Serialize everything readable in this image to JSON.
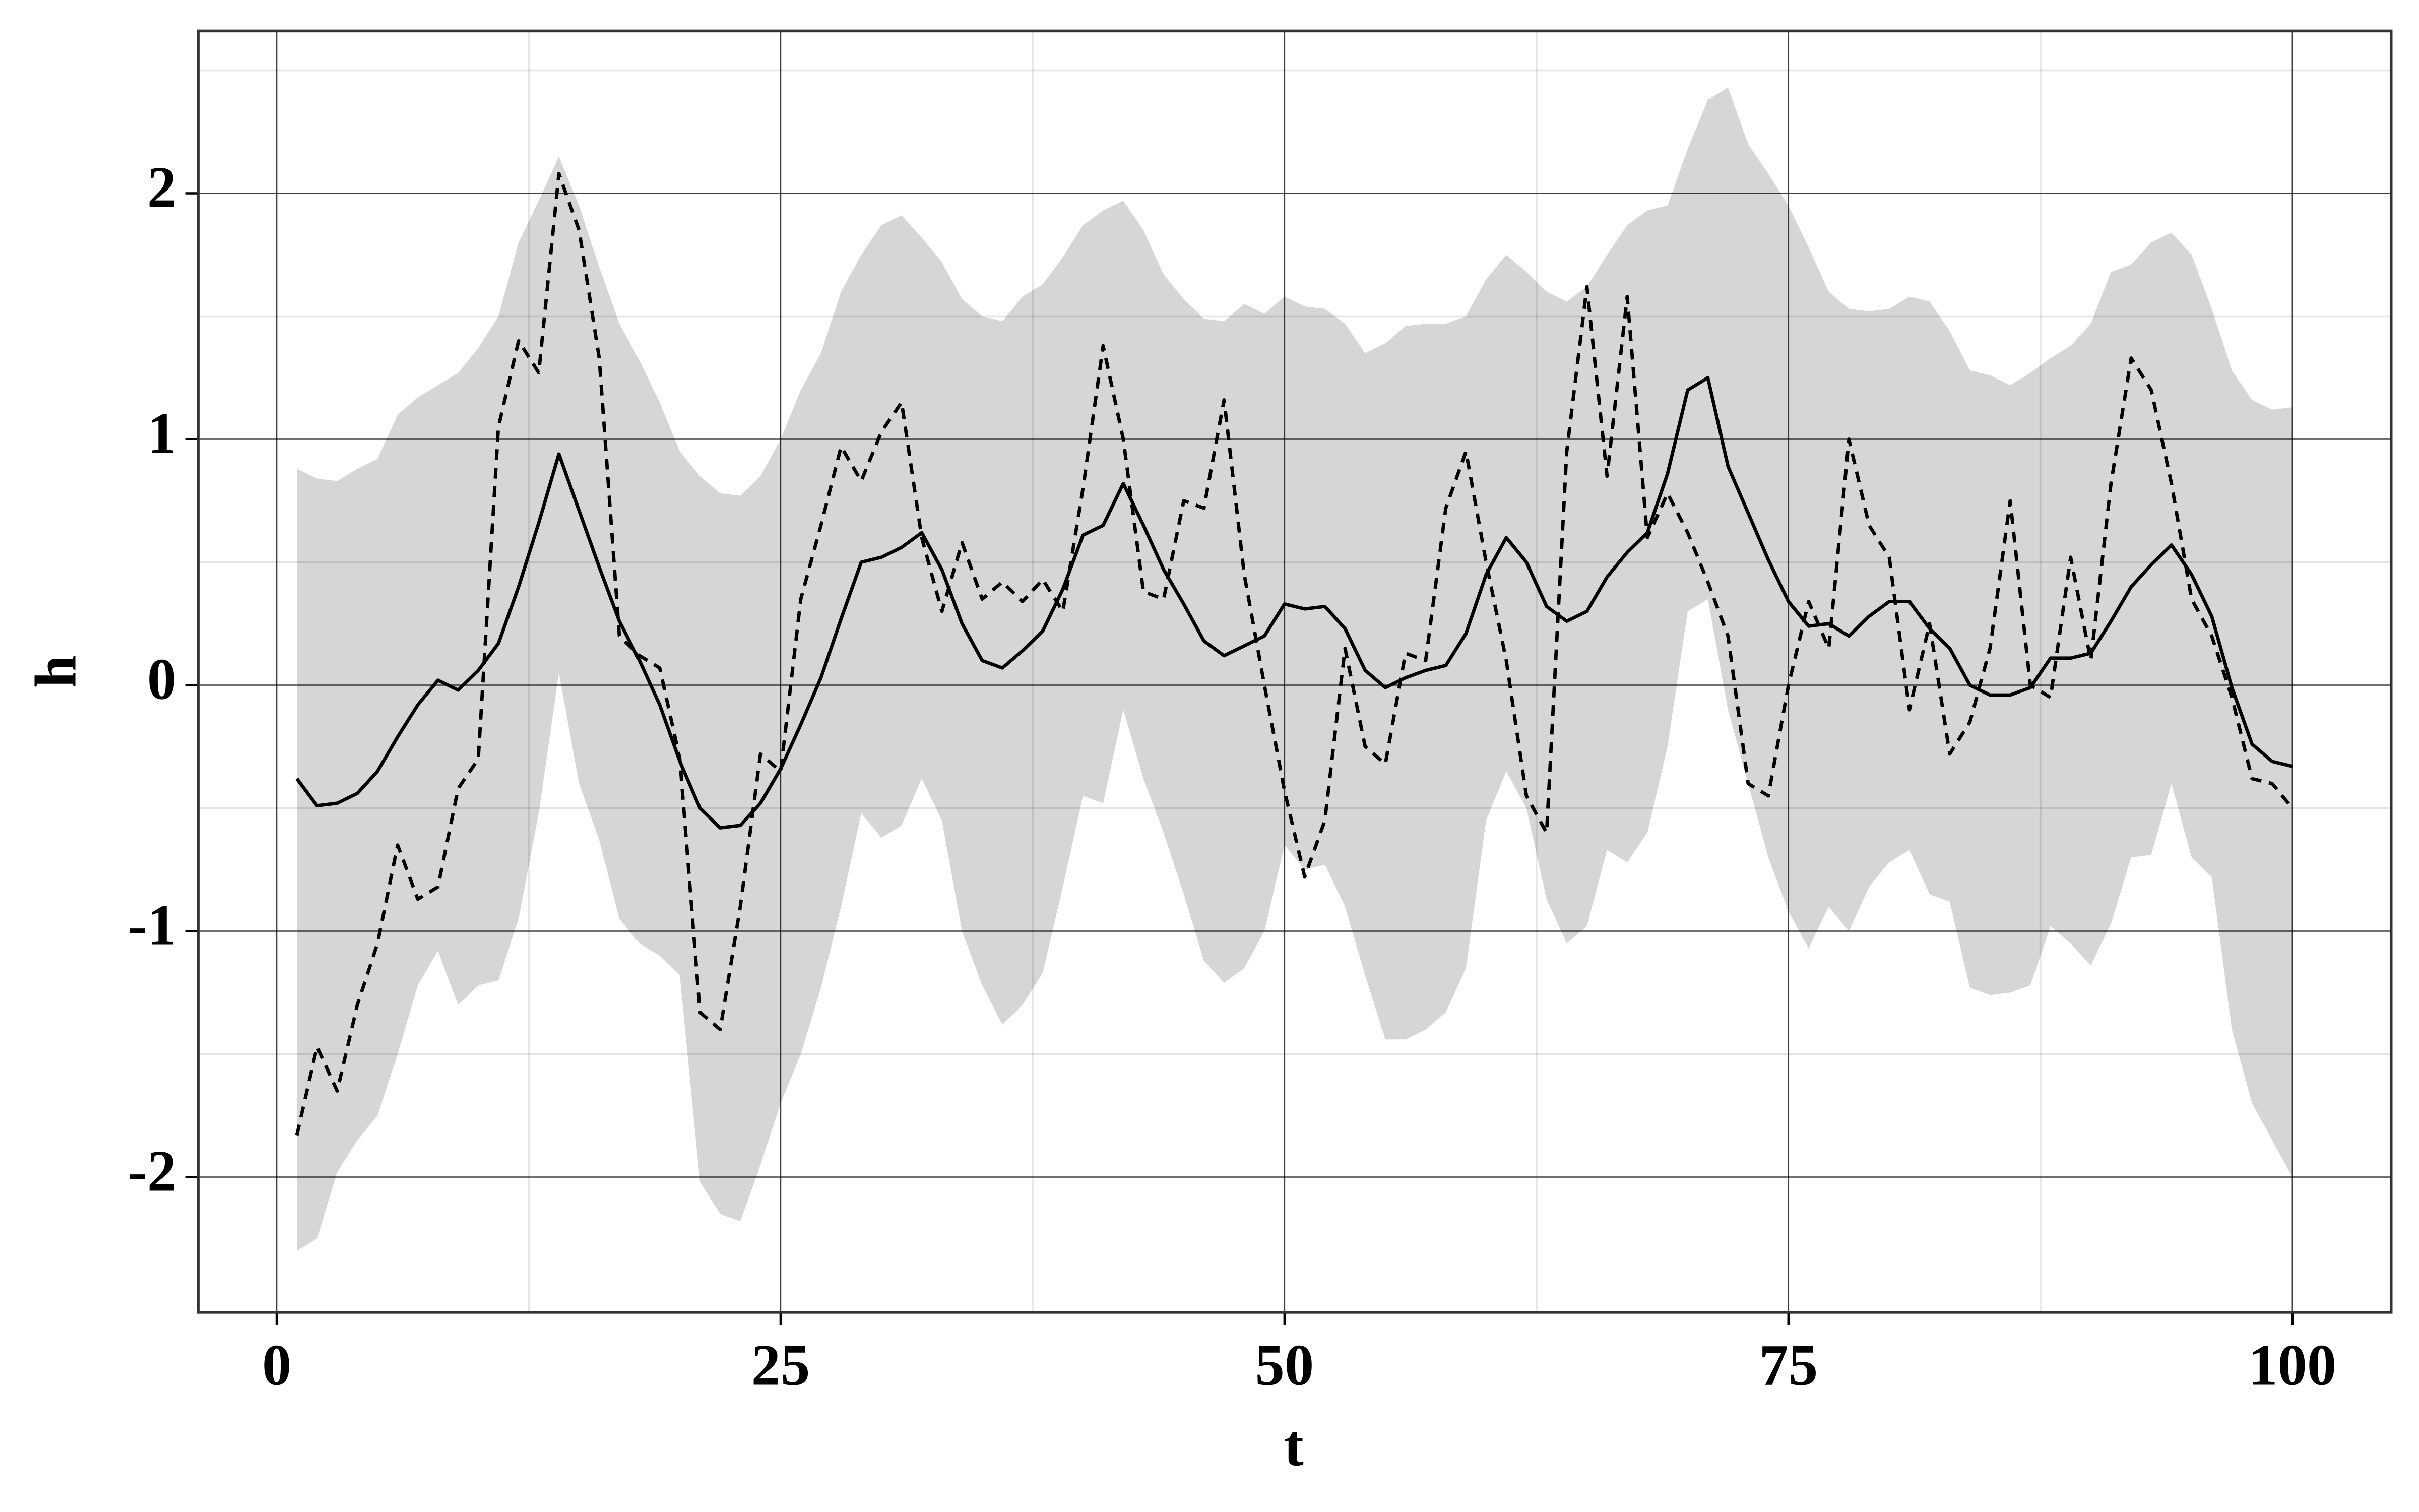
{
  "chart_data": {
    "type": "line",
    "xlabel": "t",
    "ylabel": "h",
    "x": [
      1,
      2,
      3,
      4,
      5,
      6,
      7,
      8,
      9,
      10,
      11,
      12,
      13,
      14,
      15,
      16,
      17,
      18,
      19,
      20,
      21,
      22,
      23,
      24,
      25,
      26,
      27,
      28,
      29,
      30,
      31,
      32,
      33,
      34,
      35,
      36,
      37,
      38,
      39,
      40,
      41,
      42,
      43,
      44,
      45,
      46,
      47,
      48,
      49,
      50,
      51,
      52,
      53,
      54,
      55,
      56,
      57,
      58,
      59,
      60,
      61,
      62,
      63,
      64,
      65,
      66,
      67,
      68,
      69,
      70,
      71,
      72,
      73,
      74,
      75,
      76,
      77,
      78,
      79,
      80,
      81,
      82,
      83,
      84,
      85,
      86,
      87,
      88,
      89,
      90,
      91,
      92,
      93,
      94,
      95,
      96,
      97,
      98,
      99,
      100
    ],
    "band": {
      "color": "#d6d6d6",
      "upper": [
        0.88,
        0.84,
        0.83,
        0.88,
        0.92,
        1.1,
        1.17,
        1.22,
        1.27,
        1.37,
        1.5,
        1.8,
        1.97,
        2.15,
        1.95,
        1.7,
        1.47,
        1.32,
        1.15,
        0.95,
        0.85,
        0.78,
        0.77,
        0.85,
        1.0,
        1.2,
        1.35,
        1.6,
        1.75,
        1.87,
        1.91,
        1.82,
        1.72,
        1.57,
        1.5,
        1.48,
        1.58,
        1.63,
        1.74,
        1.87,
        1.93,
        1.97,
        1.85,
        1.67,
        1.57,
        1.49,
        1.48,
        1.55,
        1.51,
        1.58,
        1.54,
        1.53,
        1.47,
        1.35,
        1.39,
        1.46,
        1.47,
        1.47,
        1.5,
        1.65,
        1.75,
        1.68,
        1.6,
        1.56,
        1.62,
        1.75,
        1.87,
        1.93,
        1.95,
        2.18,
        2.38,
        2.43,
        2.2,
        2.08,
        1.95,
        1.78,
        1.6,
        1.53,
        1.52,
        1.53,
        1.58,
        1.56,
        1.44,
        1.28,
        1.26,
        1.22,
        1.27,
        1.33,
        1.38,
        1.47,
        1.68,
        1.71,
        1.8,
        1.84,
        1.75,
        1.53,
        1.28,
        1.16,
        1.12,
        1.13
      ],
      "lower": [
        -2.3,
        -2.25,
        -1.98,
        -1.85,
        -1.75,
        -1.5,
        -1.22,
        -1.08,
        -1.3,
        -1.22,
        -1.2,
        -0.95,
        -0.52,
        0.05,
        -0.4,
        -0.63,
        -0.95,
        -1.05,
        -1.1,
        -1.18,
        -2.02,
        -2.15,
        -2.18,
        -1.95,
        -1.7,
        -1.5,
        -1.23,
        -0.9,
        -0.52,
        -0.62,
        -0.57,
        -0.38,
        -0.55,
        -1.0,
        -1.22,
        -1.38,
        -1.3,
        -1.17,
        -0.82,
        -0.45,
        -0.48,
        -0.1,
        -0.38,
        -0.6,
        -0.85,
        -1.12,
        -1.21,
        -1.15,
        -1.0,
        -0.65,
        -0.75,
        -0.73,
        -0.9,
        -1.18,
        -1.44,
        -1.44,
        -1.4,
        -1.33,
        -1.15,
        -0.55,
        -0.35,
        -0.5,
        -0.87,
        -1.05,
        -0.98,
        -0.67,
        -0.72,
        -0.6,
        -0.25,
        0.3,
        0.35,
        -0.1,
        -0.4,
        -0.7,
        -0.92,
        -1.07,
        -0.9,
        -1.0,
        -0.82,
        -0.72,
        -0.67,
        -0.85,
        -0.88,
        -1.23,
        -1.26,
        -1.25,
        -1.22,
        -0.98,
        -1.05,
        -1.14,
        -0.97,
        -0.7,
        -0.69,
        -0.4,
        -0.7,
        -0.78,
        -1.4,
        -1.7,
        -1.85,
        -2.0
      ]
    },
    "series": [
      {
        "color": "#000000",
        "dashed": false,
        "values": [
          -0.38,
          -0.49,
          -0.48,
          -0.44,
          -0.35,
          -0.21,
          -0.08,
          0.02,
          -0.02,
          0.06,
          0.17,
          0.4,
          0.66,
          0.94,
          0.71,
          0.48,
          0.26,
          0.1,
          -0.08,
          -0.31,
          -0.5,
          -0.58,
          -0.57,
          -0.48,
          -0.34,
          -0.16,
          0.03,
          0.27,
          0.5,
          0.52,
          0.56,
          0.62,
          0.47,
          0.25,
          0.1,
          0.07,
          0.14,
          0.22,
          0.39,
          0.61,
          0.65,
          0.82,
          0.65,
          0.47,
          0.33,
          0.18,
          0.12,
          0.16,
          0.2,
          0.33,
          0.31,
          0.32,
          0.23,
          0.06,
          -0.01,
          0.03,
          0.06,
          0.08,
          0.21,
          0.45,
          0.6,
          0.5,
          0.32,
          0.26,
          0.3,
          0.44,
          0.54,
          0.62,
          0.86,
          1.2,
          1.25,
          0.89,
          0.7,
          0.51,
          0.34,
          0.24,
          0.25,
          0.2,
          0.28,
          0.34,
          0.34,
          0.23,
          0.15,
          0.0,
          -0.04,
          -0.04,
          -0.01,
          0.11,
          0.11,
          0.13,
          0.26,
          0.4,
          0.49,
          0.57,
          0.45,
          0.28,
          -0.01,
          -0.24,
          -0.31,
          -0.33
        ]
      },
      {
        "color": "#000000",
        "dashed": true,
        "values": [
          -1.83,
          -1.47,
          -1.65,
          -1.3,
          -1.05,
          -0.65,
          -0.87,
          -0.82,
          -0.42,
          -0.3,
          1.05,
          1.4,
          1.27,
          2.08,
          1.85,
          1.33,
          0.2,
          0.12,
          0.07,
          -0.3,
          -1.33,
          -1.4,
          -0.9,
          -0.28,
          -0.35,
          0.35,
          0.65,
          0.97,
          0.83,
          1.03,
          1.15,
          0.6,
          0.3,
          0.58,
          0.35,
          0.42,
          0.34,
          0.43,
          0.3,
          0.8,
          1.38,
          1.0,
          0.38,
          0.35,
          0.75,
          0.72,
          1.16,
          0.45,
          0.0,
          -0.43,
          -0.78,
          -0.55,
          0.15,
          -0.25,
          -0.32,
          0.13,
          0.1,
          0.72,
          0.95,
          0.5,
          0.1,
          -0.45,
          -0.6,
          0.95,
          1.62,
          0.85,
          1.58,
          0.6,
          0.78,
          0.62,
          0.42,
          0.2,
          -0.4,
          -0.45,
          0.0,
          0.34,
          0.15,
          1.0,
          0.65,
          0.52,
          -0.1,
          0.25,
          -0.28,
          -0.15,
          0.15,
          0.75,
          0.0,
          -0.05,
          0.52,
          0.1,
          0.82,
          1.33,
          1.2,
          0.82,
          0.35,
          0.2,
          -0.05,
          -0.38,
          -0.4,
          -0.5
        ]
      }
    ],
    "xlim": [
      -3.9,
      104.9
    ],
    "ylim": [
      -2.55,
      2.66
    ],
    "xticks": [
      0,
      25,
      50,
      75,
      100
    ],
    "yticks": [
      -2,
      -1,
      0,
      1,
      2
    ],
    "xminor": [
      12.5,
      37.5,
      62.5,
      87.5
    ],
    "yminor": [
      -1.5,
      -0.5,
      0.5,
      1.5,
      2.5
    ],
    "grid": true
  }
}
